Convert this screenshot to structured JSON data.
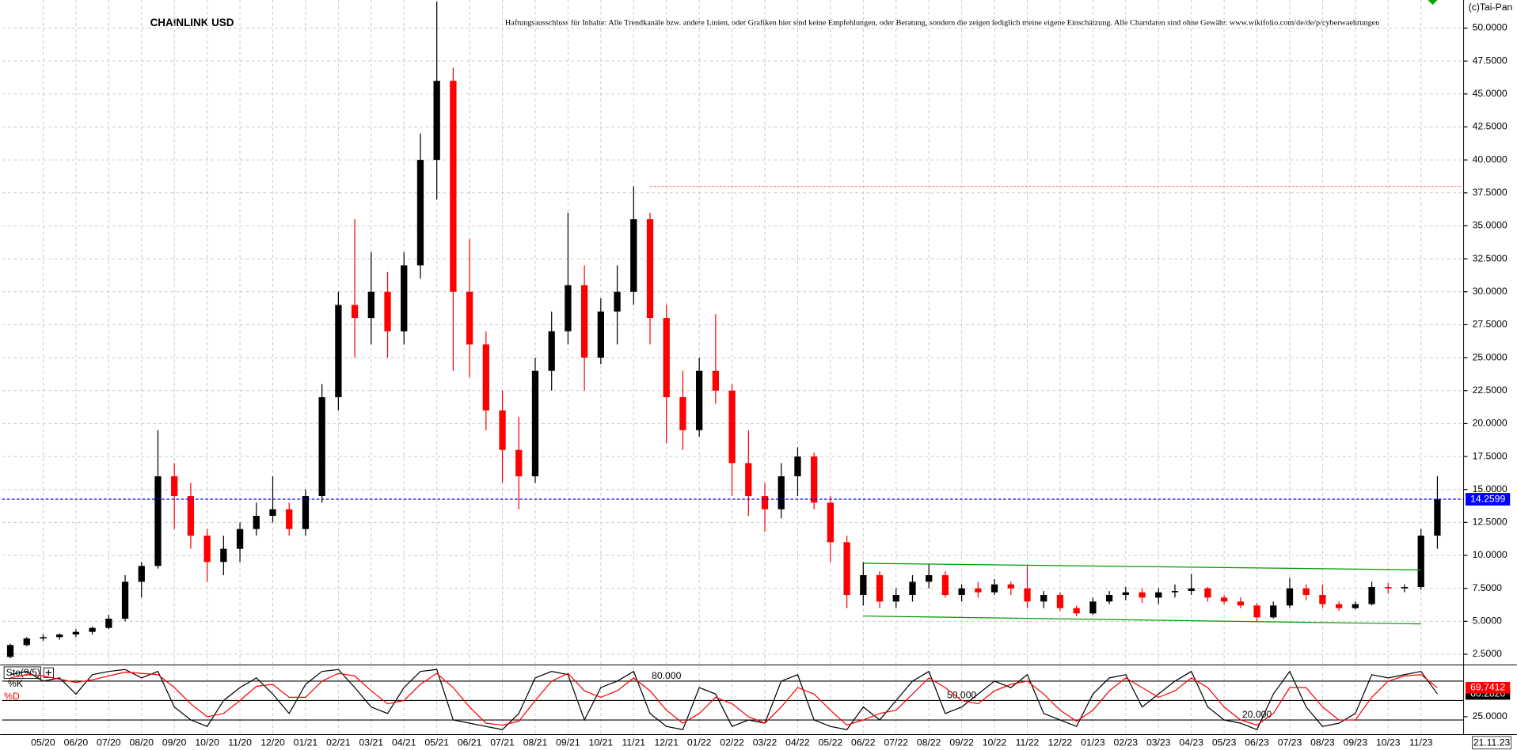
{
  "chart_data": [
    {
      "type": "candlestick",
      "title": "CHAINLINK USD",
      "disclaimer": "Haftungsausschluss für Inhalte: Alle Trendkanäle bzw. andere Linien, oder Grafiken hier sind keine Empfehlungen, oder Beratung, sondern die zeigen lediglich meine eigene Einschätzung. Alle Chartdaten sind ohne Gewähr.  www.wikifolio.com/de/de/p/cyberwaehrungen",
      "copyright": "(c)Tai-Pan",
      "categories": [
        null,
        null,
        "05/20",
        null,
        "06/20",
        null,
        "07/20",
        null,
        "08/20",
        null,
        "09/20",
        null,
        "10/20",
        null,
        "11/20",
        null,
        "12/20",
        null,
        "01/21",
        null,
        "02/21",
        null,
        "03/21",
        null,
        "04/21",
        null,
        "05/21",
        null,
        "06/21",
        null,
        "07/21",
        null,
        "08/21",
        null,
        "09/21",
        null,
        "10/21",
        null,
        "11/21",
        null,
        "12/21",
        null,
        "01/22",
        null,
        "02/22",
        null,
        "03/22",
        null,
        "04/22",
        null,
        "05/22",
        null,
        "06/22",
        null,
        "07/22",
        null,
        "08/22",
        null,
        "09/22",
        null,
        "10/22",
        null,
        "11/22",
        null,
        "12/22",
        null,
        "01/23",
        null,
        "02/23",
        null,
        "03/23",
        null,
        "04/23",
        null,
        "05/23",
        null,
        "06/23",
        null,
        "07/23",
        null,
        "08/23",
        null,
        "09/23",
        null,
        "10/23",
        null,
        "11/23",
        null
      ],
      "last_date": "21.11.23",
      "open": [
        2.3,
        3.2,
        3.7,
        3.8,
        4.0,
        4.2,
        4.5,
        5.2,
        8.0,
        9.2,
        16.0,
        14.5,
        11.5,
        9.5,
        10.5,
        12.0,
        13.0,
        13.5,
        12.0,
        14.5,
        22.0,
        29.0,
        28.0,
        30.0,
        27.0,
        32.0,
        40.0,
        46.0,
        30.0,
        26.0,
        21.0,
        18.0,
        16.0,
        24.0,
        27.0,
        30.5,
        25.0,
        28.5,
        30.0,
        35.5,
        28.0,
        22.0,
        19.5,
        24.0,
        22.5,
        17.0,
        14.5,
        13.5,
        16.0,
        17.5,
        14.0,
        11.0,
        7.0,
        8.5,
        6.5,
        7.0,
        8.0,
        8.5,
        7.0,
        7.5,
        7.2,
        7.8,
        7.5,
        6.5,
        7.0,
        6.0,
        5.6,
        6.5,
        7.0,
        7.2,
        6.8,
        7.2,
        7.3,
        7.5,
        6.8,
        6.5,
        6.2,
        5.3,
        6.2,
        7.5,
        7.0,
        6.3,
        6.0,
        6.3,
        7.6,
        7.5,
        7.6,
        11.5
      ],
      "high": [
        3.3,
        3.8,
        4.0,
        4.1,
        4.4,
        4.6,
        5.5,
        8.5,
        9.5,
        19.5,
        17.0,
        15.5,
        12.0,
        11.5,
        12.5,
        14.0,
        16.0,
        14.0,
        15.0,
        23.0,
        30.0,
        35.5,
        33.0,
        31.5,
        33.0,
        42.0,
        52.0,
        47.0,
        34.0,
        27.0,
        22.5,
        20.5,
        25.0,
        28.5,
        36.0,
        32.0,
        29.5,
        32.0,
        38.0,
        36.0,
        29.0,
        24.0,
        25.0,
        28.3,
        23.0,
        19.5,
        15.5,
        17.0,
        18.2,
        17.8,
        14.5,
        11.5,
        9.5,
        8.8,
        7.5,
        8.5,
        9.3,
        8.8,
        7.8,
        8.0,
        8.2,
        8.0,
        9.2,
        7.3,
        7.2,
        6.2,
        6.8,
        7.3,
        7.6,
        7.5,
        7.5,
        7.8,
        8.6,
        7.6,
        7.0,
        6.8,
        6.4,
        6.5,
        8.3,
        7.8,
        7.8,
        6.5,
        6.5,
        8.0,
        7.9,
        7.8,
        12.0,
        16.0
      ],
      "low": [
        2.2,
        3.1,
        3.5,
        3.6,
        3.8,
        4.0,
        4.4,
        5.0,
        6.8,
        9.0,
        12.0,
        10.5,
        8.0,
        8.5,
        9.5,
        11.5,
        12.5,
        11.5,
        11.5,
        14.0,
        21.0,
        25.0,
        26.0,
        25.0,
        26.0,
        31.0,
        37.0,
        24.0,
        23.5,
        19.5,
        15.5,
        13.5,
        15.5,
        22.5,
        26.0,
        22.5,
        24.5,
        26.0,
        29.0,
        26.0,
        18.5,
        18.0,
        19.0,
        21.5,
        14.5,
        13.0,
        11.8,
        12.8,
        14.5,
        13.5,
        9.5,
        6.0,
        6.2,
        6.0,
        6.0,
        6.5,
        7.5,
        6.8,
        6.5,
        6.8,
        7.0,
        7.0,
        6.0,
        6.0,
        5.8,
        5.4,
        5.5,
        6.3,
        6.6,
        6.4,
        6.3,
        6.8,
        7.0,
        6.5,
        6.3,
        6.0,
        5.0,
        5.2,
        6.0,
        6.6,
        6.0,
        5.8,
        5.9,
        6.2,
        7.1,
        7.2,
        7.4,
        10.5
      ],
      "close": [
        3.2,
        3.7,
        3.8,
        4.0,
        4.2,
        4.5,
        5.2,
        8.0,
        9.2,
        16.0,
        14.5,
        11.5,
        9.5,
        10.5,
        12.0,
        13.0,
        13.5,
        12.0,
        14.5,
        22.0,
        29.0,
        28.0,
        30.0,
        27.0,
        32.0,
        40.0,
        46.0,
        30.0,
        26.0,
        21.0,
        18.0,
        16.0,
        24.0,
        27.0,
        30.5,
        25.0,
        28.5,
        30.0,
        35.5,
        28.0,
        22.0,
        19.5,
        24.0,
        22.5,
        17.0,
        14.5,
        13.5,
        16.0,
        17.5,
        14.0,
        11.0,
        7.0,
        8.5,
        6.5,
        7.0,
        8.0,
        8.5,
        7.0,
        7.5,
        7.2,
        7.8,
        7.5,
        6.5,
        7.0,
        6.0,
        5.6,
        6.5,
        7.0,
        7.2,
        6.8,
        7.2,
        7.3,
        7.5,
        6.8,
        6.5,
        6.2,
        5.3,
        6.2,
        7.5,
        7.0,
        6.3,
        6.0,
        6.3,
        7.6,
        7.5,
        7.6,
        11.5,
        14.2599
      ],
      "up_color": "#000000",
      "down_color": "#ff0000",
      "current_price": 14.2599,
      "current_price_label": "14.2599",
      "current_color": "#0000ff",
      "resistance": {
        "value": 38.0,
        "from": 39,
        "color": "#ff6666"
      },
      "channel": {
        "color": "#009900",
        "lines": [
          {
            "from": 52,
            "to": 86,
            "start": 9.4,
            "end": 8.9
          },
          {
            "from": 52,
            "to": 86,
            "start": 5.4,
            "end": 4.8
          }
        ]
      },
      "ylim": [
        1.69,
        52.13
      ],
      "yticks": [
        {
          "value": 2.5,
          "label": "2.5000"
        },
        {
          "value": 5,
          "label": "5.0000"
        },
        {
          "value": 7.5,
          "label": "7.5000"
        },
        {
          "value": 10,
          "label": "10.0000"
        },
        {
          "value": 12.5,
          "label": "12.5000"
        },
        {
          "value": 15,
          "label": "15.0000"
        },
        {
          "value": 17.5,
          "label": "17.5000"
        },
        {
          "value": 20,
          "label": "20.0000"
        },
        {
          "value": 22.5,
          "label": "22.5000"
        },
        {
          "value": 25,
          "label": "25.0000"
        },
        {
          "value": 27.5,
          "label": "27.5000"
        },
        {
          "value": 30,
          "label": "30.0000"
        },
        {
          "value": 32.5,
          "label": "32.5000"
        },
        {
          "value": 35,
          "label": "35.0000"
        },
        {
          "value": 37.5,
          "label": "37.5000"
        },
        {
          "value": 40,
          "label": "40.0000"
        },
        {
          "value": 42.5,
          "label": "42.5000"
        },
        {
          "value": 45,
          "label": "45.0000"
        },
        {
          "value": 47.5,
          "label": "47.5000"
        },
        {
          "value": 50,
          "label": "50.0000"
        }
      ],
      "grid": true
    },
    {
      "type": "line",
      "title": "Sto(9/5)",
      "series": [
        {
          "name": "%K",
          "color": "#000000",
          "last_label": "60.2820",
          "values": [
            90,
            95,
            80,
            85,
            60,
            90,
            95,
            98,
            85,
            95,
            40,
            20,
            10,
            50,
            70,
            85,
            60,
            30,
            75,
            95,
            98,
            70,
            40,
            30,
            70,
            95,
            98,
            20,
            15,
            10,
            5,
            30,
            85,
            95,
            90,
            20,
            70,
            80,
            95,
            30,
            10,
            5,
            70,
            60,
            10,
            20,
            15,
            80,
            90,
            20,
            10,
            5,
            40,
            20,
            50,
            80,
            95,
            30,
            40,
            60,
            80,
            70,
            90,
            30,
            20,
            10,
            60,
            85,
            90,
            40,
            60,
            80,
            95,
            40,
            20,
            15,
            5,
            60,
            95,
            40,
            10,
            15,
            30,
            90,
            85,
            90,
            95,
            60.282
          ]
        },
        {
          "name": "%D",
          "color": "#ff0000",
          "last_label": "69.7412",
          "values": [
            85,
            90,
            88,
            83,
            78,
            82,
            88,
            94,
            92,
            90,
            70,
            45,
            25,
            30,
            50,
            72,
            75,
            55,
            55,
            80,
            92,
            88,
            65,
            45,
            50,
            75,
            92,
            70,
            40,
            15,
            12,
            18,
            50,
            80,
            92,
            65,
            55,
            65,
            85,
            65,
            35,
            15,
            30,
            55,
            45,
            25,
            15,
            40,
            70,
            60,
            35,
            12,
            20,
            30,
            35,
            60,
            85,
            70,
            50,
            45,
            65,
            75,
            80,
            60,
            35,
            18,
            35,
            65,
            85,
            70,
            55,
            65,
            85,
            70,
            40,
            20,
            12,
            30,
            70,
            70,
            40,
            20,
            20,
            55,
            80,
            88,
            90,
            69.7412
          ]
        }
      ],
      "levels": [
        {
          "value": 80,
          "label": "80.000",
          "at": 40
        },
        {
          "value": 50,
          "label": "50.000",
          "at": 58
        },
        {
          "value": 20,
          "label": "20.000",
          "at": 76
        }
      ],
      "ylim": [
        0,
        102
      ],
      "yticks": [
        {
          "value": 25,
          "label": "25.0000"
        }
      ]
    }
  ]
}
